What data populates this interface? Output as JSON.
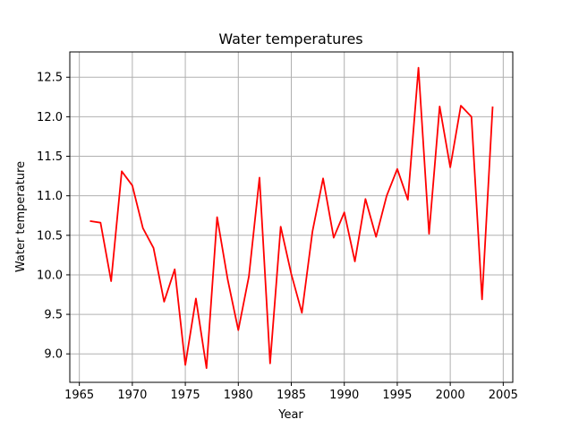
{
  "chart_data": {
    "type": "line",
    "title": "Water temperatures",
    "xlabel": "Year",
    "ylabel": "Water temperature",
    "xlim": [
      1964.1,
      2005.9
    ],
    "ylim": [
      8.64,
      12.82
    ],
    "x_ticks": [
      1965,
      1970,
      1975,
      1980,
      1985,
      1990,
      1995,
      2000,
      2005
    ],
    "x_tick_labels": [
      "1965",
      "1970",
      "1975",
      "1980",
      "1985",
      "1990",
      "1995",
      "2000",
      "2005"
    ],
    "y_ticks": [
      9.0,
      9.5,
      10.0,
      10.5,
      11.0,
      11.5,
      12.0,
      12.5
    ],
    "y_tick_labels": [
      "9.0",
      "9.5",
      "10.0",
      "10.5",
      "11.0",
      "11.5",
      "12.0",
      "12.5"
    ],
    "grid": true,
    "series": [
      {
        "color": "#ff0000",
        "x": [
          1966,
          1967,
          1968,
          1969,
          1970,
          1971,
          1972,
          1973,
          1974,
          1975,
          1976,
          1977,
          1978,
          1979,
          1980,
          1981,
          1982,
          1983,
          1984,
          1985,
          1986,
          1987,
          1988,
          1989,
          1990,
          1991,
          1992,
          1993,
          1994,
          1995,
          1996,
          1997,
          1998,
          1999,
          2000,
          2001,
          2002,
          2003,
          2004
        ],
        "values": [
          10.68,
          10.66,
          9.92,
          11.31,
          11.13,
          10.59,
          10.34,
          9.66,
          10.07,
          8.86,
          9.7,
          8.82,
          10.73,
          9.94,
          9.3,
          9.98,
          11.23,
          8.88,
          10.61,
          10.01,
          9.52,
          10.55,
          11.22,
          10.47,
          10.79,
          10.17,
          10.96,
          10.48,
          11.0,
          11.34,
          10.95,
          12.62,
          10.52,
          12.13,
          11.36,
          12.14,
          12.0,
          9.69,
          12.13
        ]
      }
    ]
  }
}
